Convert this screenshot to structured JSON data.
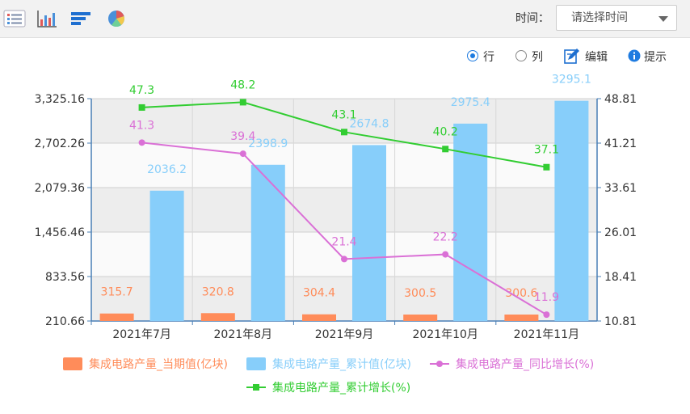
{
  "toolbar": {
    "time_label": "时间：",
    "time_placeholder": "请选择时间",
    "icons": [
      "list-icon",
      "bar-chart-icon",
      "horizontal-bar-icon",
      "pie-chart-icon"
    ]
  },
  "options": {
    "row_label": "行",
    "column_label": "列",
    "edit_label": "编辑",
    "hint_label": "提示",
    "selected": "row"
  },
  "colors": {
    "current": "#ff8c5a",
    "cumulative": "#87cefa",
    "yoy": "#da70d6",
    "cum_growth": "#32cd32",
    "radio_accent": "#1e7be0"
  },
  "chart_data": {
    "type": "bar",
    "categories": [
      "2021年7月",
      "2021年8月",
      "2021年9月",
      "2021年10月",
      "2021年11月"
    ],
    "series": [
      {
        "name": "集成电路产量_当期值(亿块)",
        "type": "bar",
        "axis": "left",
        "color": "#ff8c5a",
        "values": [
          315.7,
          320.8,
          304.4,
          300.5,
          300.6
        ]
      },
      {
        "name": "集成电路产量_累计值(亿块)",
        "type": "bar",
        "axis": "left",
        "color": "#87cefa",
        "values": [
          2036.2,
          2398.9,
          2674.8,
          2975.4,
          3295.1
        ]
      },
      {
        "name": "集成电路产量_同比增长(%)",
        "type": "line",
        "axis": "right",
        "color": "#da70d6",
        "marker": "circle",
        "values": [
          41.3,
          39.4,
          21.4,
          22.2,
          11.9
        ]
      },
      {
        "name": "集成电路产量_累计增长(%)",
        "type": "line",
        "axis": "right",
        "color": "#32cd32",
        "marker": "square",
        "values": [
          47.3,
          48.2,
          43.1,
          40.2,
          37.1
        ]
      }
    ],
    "y_left": {
      "ticks": [
        "210.66",
        "833.56",
        "1,456.46",
        "2,079.36",
        "2,702.26",
        "3,325.16"
      ],
      "min": 210.66,
      "max": 3325.16
    },
    "y_right": {
      "ticks": [
        "10.81",
        "18.41",
        "26.01",
        "33.61",
        "41.21",
        "48.81"
      ],
      "min": 10.81,
      "max": 48.81
    },
    "legend_position": "bottom",
    "grid": true
  }
}
